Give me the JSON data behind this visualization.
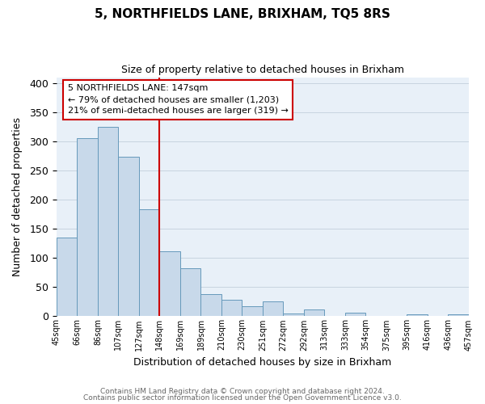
{
  "title": "5, NORTHFIELDS LANE, BRIXHAM, TQ5 8RS",
  "subtitle": "Size of property relative to detached houses in Brixham",
  "xlabel": "Distribution of detached houses by size in Brixham",
  "ylabel": "Number of detached properties",
  "bar_labels": [
    "45sqm",
    "66sqm",
    "86sqm",
    "107sqm",
    "127sqm",
    "148sqm",
    "169sqm",
    "189sqm",
    "210sqm",
    "230sqm",
    "251sqm",
    "272sqm",
    "292sqm",
    "313sqm",
    "333sqm",
    "354sqm",
    "375sqm",
    "395sqm",
    "416sqm",
    "436sqm",
    "457sqm"
  ],
  "bar_values": [
    135,
    305,
    325,
    273,
    183,
    112,
    83,
    38,
    28,
    17,
    25,
    5,
    11,
    0,
    6,
    1,
    0,
    3,
    0,
    4
  ],
  "bar_color": "#c8d9ea",
  "bar_edge_color": "#6699bb",
  "property_line_x": 5,
  "property_line_color": "#cc0000",
  "ylim": [
    0,
    410
  ],
  "yticks": [
    0,
    50,
    100,
    150,
    200,
    250,
    300,
    350,
    400
  ],
  "annotation_line1": "5 NORTHFIELDS LANE: 147sqm",
  "annotation_line2": "← 79% of detached houses are smaller (1,203)",
  "annotation_line3": "21% of semi-detached houses are larger (319) →",
  "annotation_box_color": "#ffffff",
  "annotation_box_edge_color": "#cc0000",
  "footer1": "Contains HM Land Registry data © Crown copyright and database right 2024.",
  "footer2": "Contains public sector information licensed under the Open Government Licence v3.0.",
  "background_color": "#ffffff",
  "plot_bg_color": "#e8f0f8",
  "grid_color": "#c8d4e0"
}
